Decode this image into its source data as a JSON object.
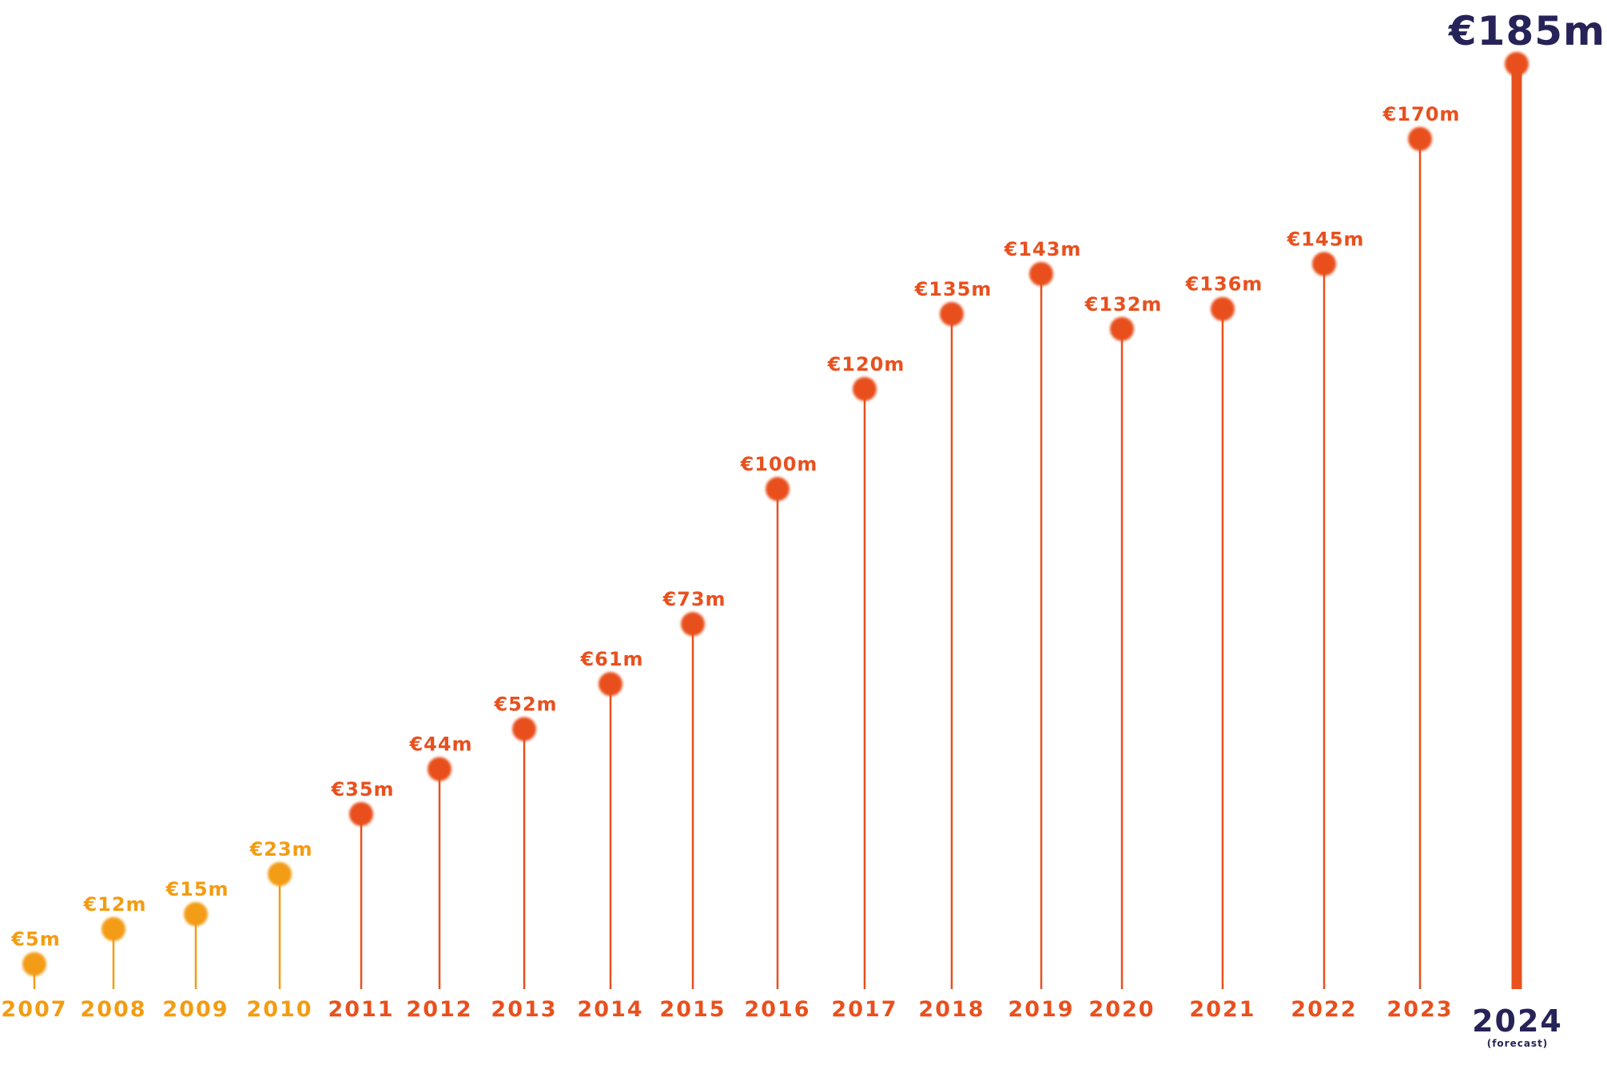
{
  "chart_data": {
    "type": "lollipop",
    "unit": "€m",
    "points": [
      {
        "year": "2007",
        "value": 5,
        "label": "€5m",
        "tone": "early"
      },
      {
        "year": "2008",
        "value": 12,
        "label": "€12m",
        "tone": "early"
      },
      {
        "year": "2009",
        "value": 15,
        "label": "€15m",
        "tone": "early"
      },
      {
        "year": "2010",
        "value": 23,
        "label": "€23m",
        "tone": "early"
      },
      {
        "year": "2011",
        "value": 35,
        "label": "€35m",
        "tone": "main"
      },
      {
        "year": "2012",
        "value": 44,
        "label": "€44m",
        "tone": "main"
      },
      {
        "year": "2013",
        "value": 52,
        "label": "€52m",
        "tone": "main"
      },
      {
        "year": "2014",
        "value": 61,
        "label": "€61m",
        "tone": "main"
      },
      {
        "year": "2015",
        "value": 73,
        "label": "€73m",
        "tone": "main"
      },
      {
        "year": "2016",
        "value": 100,
        "label": "€100m",
        "tone": "main"
      },
      {
        "year": "2017",
        "value": 120,
        "label": "€120m",
        "tone": "main"
      },
      {
        "year": "2018",
        "value": 135,
        "label": "€135m",
        "tone": "main"
      },
      {
        "year": "2019",
        "value": 143,
        "label": "€143m",
        "tone": "main"
      },
      {
        "year": "2020",
        "value": 132,
        "label": "€132m",
        "tone": "main"
      },
      {
        "year": "2021",
        "value": 136,
        "label": "€136m",
        "tone": "main"
      },
      {
        "year": "2022",
        "value": 145,
        "label": "€145m",
        "tone": "main"
      },
      {
        "year": "2023",
        "value": 170,
        "label": "€170m",
        "tone": "main"
      },
      {
        "year": "2024",
        "value": 185,
        "label": "€185m",
        "tone": "forecast",
        "note": "(forecast)"
      }
    ],
    "colors": {
      "early": "#F39C12",
      "main": "#E8501E",
      "forecast_bar": "#E8501E",
      "forecast_text": "#262358"
    }
  }
}
